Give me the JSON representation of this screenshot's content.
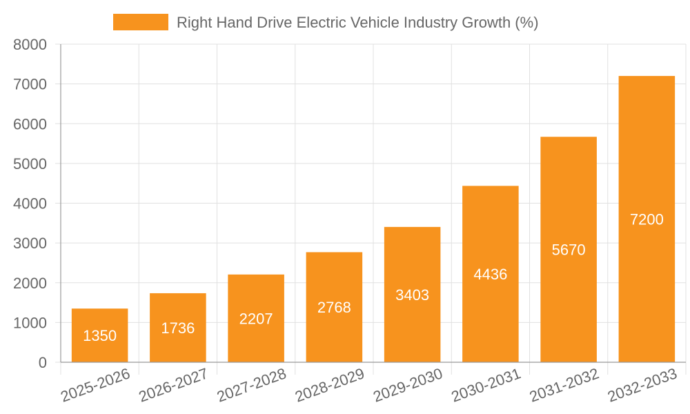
{
  "chart_data": {
    "type": "bar",
    "series_name": "Right Hand Drive Electric Vehicle Industry Growth (%)",
    "categories": [
      "2025-2026",
      "2026-2027",
      "2027-2028",
      "2028-2029",
      "2029-2030",
      "2030-2031",
      "2031-2032",
      "2032-2033"
    ],
    "values": [
      1350,
      1736,
      2207,
      2768,
      3403,
      4436,
      5670,
      7200
    ],
    "ylim": [
      0,
      8000
    ],
    "yticks": [
      0,
      1000,
      2000,
      3000,
      4000,
      5000,
      6000,
      7000,
      8000
    ],
    "grid": true,
    "legend_position": "top-center",
    "bar_color": "#f7931e",
    "data_labels": true
  }
}
